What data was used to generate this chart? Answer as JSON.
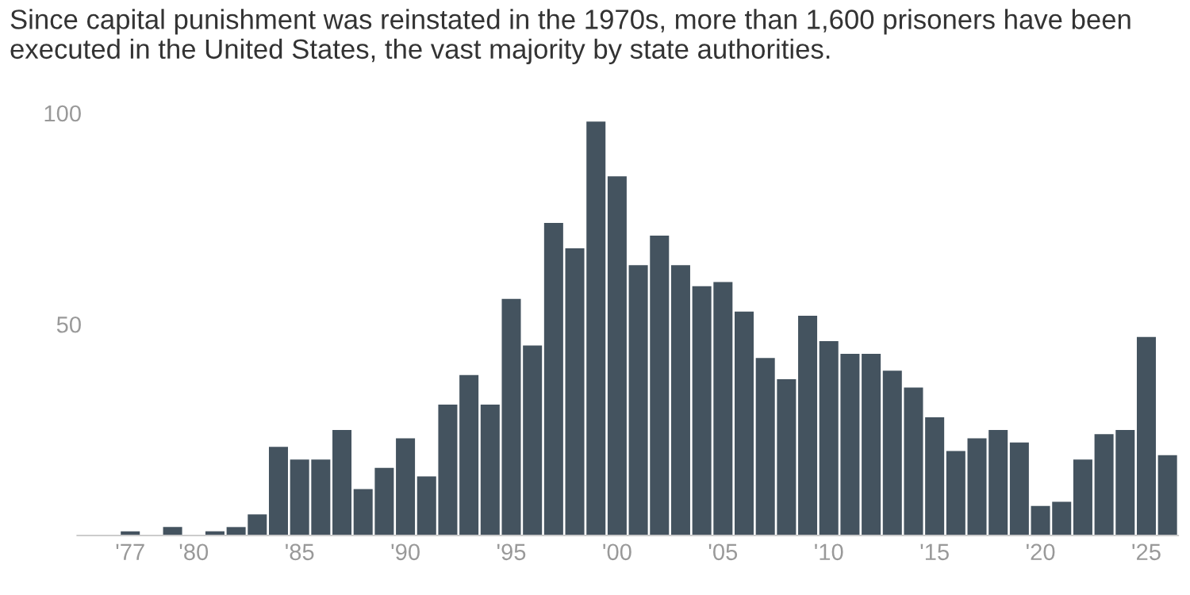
{
  "chart_data": {
    "type": "bar",
    "title": "Since capital punishment was reinstated in the 1970s, more than 1,600 prisoners have been executed in the United States, the vast majority by state authorities.",
    "categories": [
      "'77",
      null,
      null,
      "'80",
      null,
      null,
      null,
      null,
      "'85",
      null,
      null,
      null,
      null,
      "'90",
      null,
      null,
      null,
      null,
      "'95",
      null,
      null,
      null,
      null,
      "'00",
      null,
      null,
      null,
      null,
      "'05",
      null,
      null,
      null,
      null,
      "'10",
      null,
      null,
      null,
      null,
      "'15",
      null,
      null,
      null,
      null,
      "'20",
      null,
      null,
      null,
      null,
      "'25",
      null
    ],
    "values": [
      1,
      0,
      2,
      0,
      1,
      2,
      5,
      21,
      18,
      18,
      25,
      11,
      16,
      23,
      14,
      31,
      38,
      31,
      56,
      45,
      74,
      68,
      98,
      85,
      64,
      71,
      64,
      59,
      60,
      53,
      42,
      37,
      52,
      46,
      43,
      43,
      39,
      35,
      28,
      20,
      23,
      25,
      22,
      7,
      8,
      18,
      24,
      25,
      47,
      19
    ],
    "color": "#44535f",
    "ylim": [
      0,
      100
    ],
    "yticks": [
      50,
      100
    ],
    "grid": false
  }
}
